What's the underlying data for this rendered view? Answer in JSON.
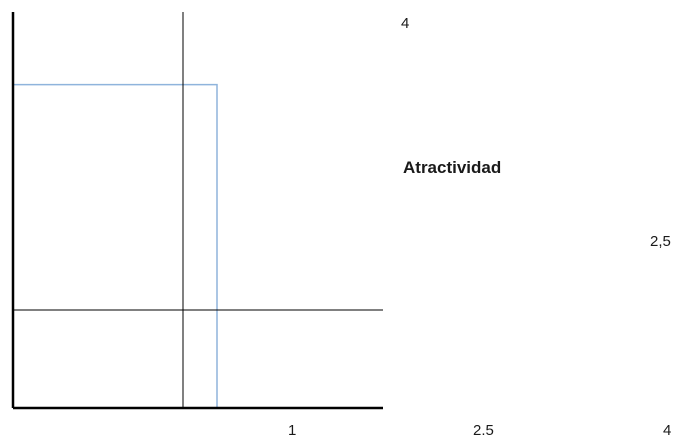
{
  "chart_data": {
    "type": "scatter",
    "label": "Atractividad",
    "axes": {
      "x_visible": true,
      "y_visible": true,
      "x_min": 0,
      "y_min": 0
    },
    "reference_lines": {
      "vertical_x": 1,
      "horizontal_y": 1,
      "highlight_box": {
        "x_max": 1.2,
        "y_max": 3.3,
        "color": "#8fb4dc"
      }
    },
    "tick_labels": {
      "x": [
        "1",
        "2.5",
        "4"
      ],
      "y_right": [
        "4",
        "2,5"
      ]
    }
  }
}
